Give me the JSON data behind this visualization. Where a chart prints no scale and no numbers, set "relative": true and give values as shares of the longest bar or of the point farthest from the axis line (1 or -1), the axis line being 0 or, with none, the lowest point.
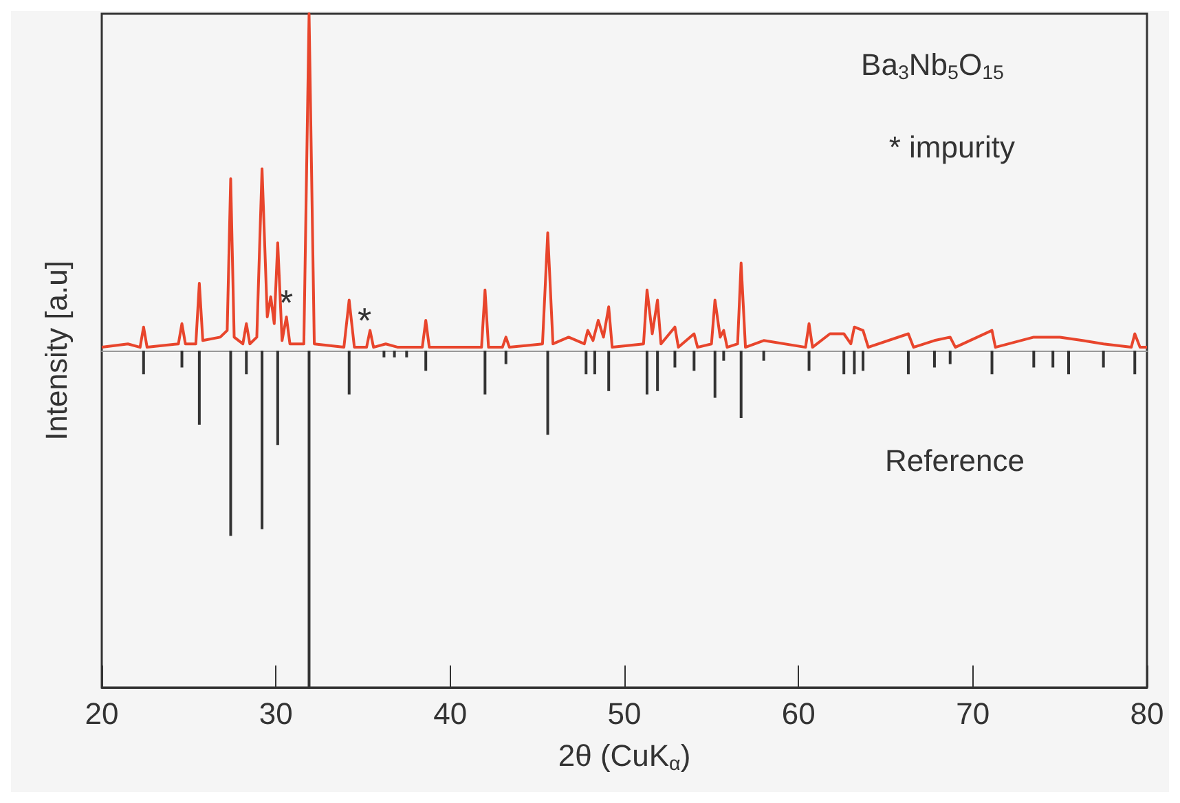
{
  "chart_data": {
    "type": "line",
    "relative": true,
    "xlabel": "2θ (CuK$_{α}$)",
    "ylabel": "Intensity [a.u]",
    "xlim": [
      20,
      80
    ],
    "xticks": [
      20,
      30,
      40,
      50,
      60,
      70,
      80
    ],
    "grid": false,
    "annotations": [
      "Ba$_{3}$Nb$_{5}$O$_{15}$",
      "* impurity",
      "Reference",
      "*",
      "*"
    ],
    "series": [
      {
        "color": "#e8452c",
        "x": [
          20,
          21.5,
          22.2,
          22.4,
          22.6,
          24.4,
          24.6,
          24.8,
          25.4,
          25.6,
          25.8,
          26.8,
          27.2,
          27.4,
          27.6,
          28.1,
          28.3,
          28.5,
          28.9,
          29.2,
          29.5,
          29.7,
          29.9,
          30.1,
          30.35,
          30.6,
          30.8,
          31.6,
          31.9,
          32.2,
          33.9,
          34.2,
          34.5,
          35.2,
          35.4,
          35.6,
          36.3,
          37.0,
          38.4,
          38.6,
          38.8,
          41.8,
          42.0,
          42.2,
          43.0,
          43.2,
          43.4,
          45.3,
          45.6,
          45.9,
          46.8,
          47.7,
          47.9,
          48.2,
          48.5,
          48.8,
          49.1,
          49.3,
          51.1,
          51.3,
          51.6,
          51.9,
          52.1,
          52.9,
          53.1,
          54.0,
          54.2,
          55.0,
          55.2,
          55.5,
          55.7,
          55.9,
          56.5,
          56.7,
          56.95,
          58.0,
          60.4,
          60.6,
          60.8,
          61.8,
          62.6,
          63.0,
          63.2,
          63.7,
          64.0,
          66.3,
          66.6,
          67.8,
          68.7,
          69.0,
          71.1,
          71.3,
          73.5,
          75.0,
          76.3,
          77.5,
          79.1,
          79.3,
          79.6,
          80
        ],
        "values": [
          0.01,
          0.02,
          0.01,
          0.07,
          0.01,
          0.02,
          0.08,
          0.02,
          0.02,
          0.2,
          0.03,
          0.04,
          0.06,
          0.51,
          0.04,
          0.02,
          0.08,
          0.02,
          0.04,
          0.54,
          0.1,
          0.16,
          0.08,
          0.32,
          0.03,
          0.1,
          0.02,
          0.02,
          1,
          0.02,
          0.01,
          0.15,
          0.01,
          0.01,
          0.06,
          0.01,
          0.02,
          0.01,
          0.01,
          0.09,
          0.01,
          0.01,
          0.18,
          0.01,
          0.01,
          0.04,
          0.01,
          0.02,
          0.35,
          0.02,
          0.04,
          0.02,
          0.06,
          0.03,
          0.09,
          0.04,
          0.13,
          0.01,
          0.02,
          0.18,
          0.05,
          0.15,
          0.02,
          0.07,
          0.01,
          0.05,
          0.01,
          0.02,
          0.15,
          0.04,
          0.06,
          0.01,
          0.02,
          0.26,
          0.01,
          0.03,
          0.01,
          0.08,
          0.01,
          0.05,
          0.05,
          0.02,
          0.07,
          0.06,
          0.01,
          0.05,
          0.01,
          0.03,
          0.04,
          0.01,
          0.06,
          0.01,
          0.04,
          0.04,
          0.03,
          0.02,
          0.01,
          0.05,
          0.01,
          0.01
        ]
      },
      {
        "type": "bar",
        "color": "#333333",
        "x": [
          22.4,
          24.6,
          25.6,
          27.4,
          28.3,
          29.2,
          30.1,
          31.9,
          34.2,
          36.2,
          36.8,
          37.5,
          38.6,
          42.0,
          43.2,
          45.6,
          47.8,
          48.3,
          49.1,
          51.3,
          51.9,
          52.9,
          54.0,
          55.2,
          55.7,
          56.7,
          58.0,
          60.6,
          62.6,
          63.2,
          63.7,
          66.3,
          67.8,
          68.7,
          71.1,
          73.5,
          74.6,
          75.5,
          77.5,
          79.3
        ],
        "values": [
          -0.07,
          -0.05,
          -0.22,
          -0.55,
          -0.07,
          -0.53,
          -0.28,
          -1,
          -0.13,
          -0.02,
          -0.02,
          -0.02,
          -0.06,
          -0.13,
          -0.04,
          -0.25,
          -0.07,
          -0.07,
          -0.12,
          -0.13,
          -0.12,
          -0.05,
          -0.06,
          -0.14,
          -0.03,
          -0.2,
          -0.03,
          -0.06,
          -0.07,
          -0.07,
          -0.06,
          -0.07,
          -0.05,
          -0.04,
          -0.07,
          -0.05,
          -0.05,
          -0.07,
          -0.05,
          -0.07
        ]
      }
    ]
  }
}
